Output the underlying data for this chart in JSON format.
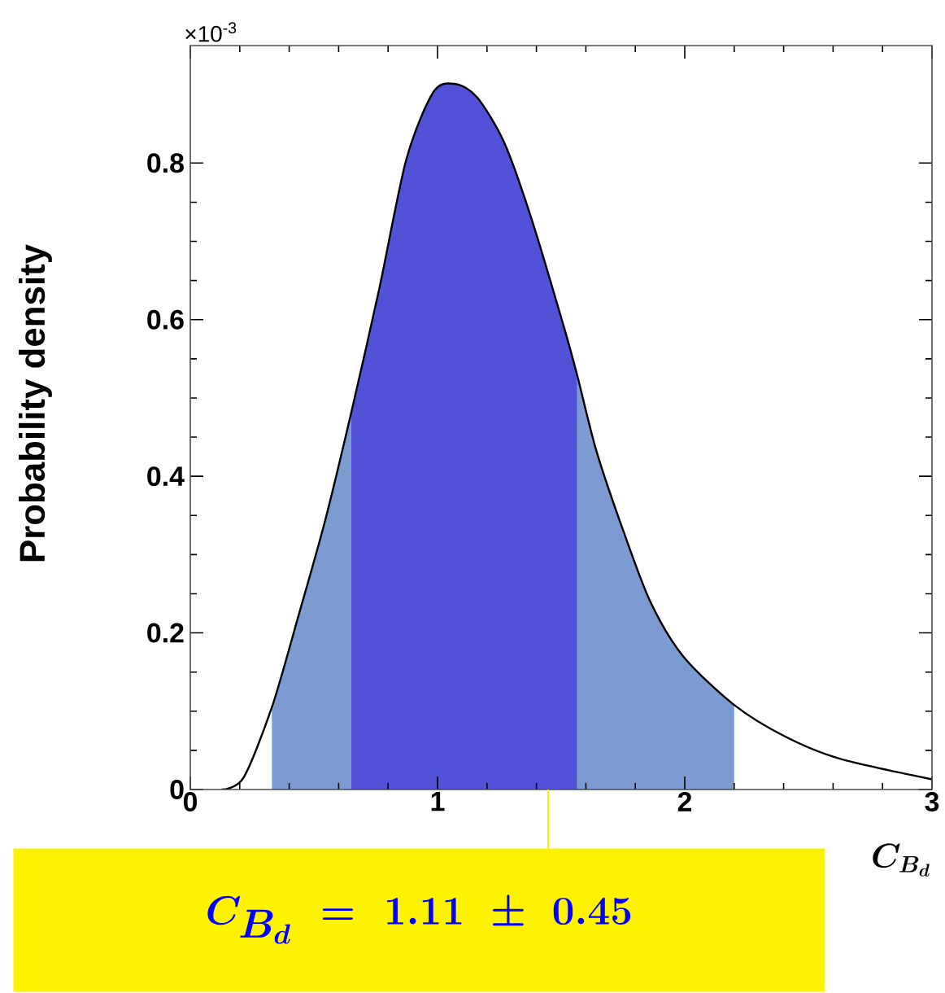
{
  "chart_data": {
    "type": "area",
    "xlabel": "C_{B_d}",
    "ylabel": "Probability density",
    "xlim": [
      0,
      3
    ],
    "xticks": [
      0,
      1,
      2,
      3
    ],
    "ylim": [
      0,
      0.95
    ],
    "yticks": [
      0,
      0.2,
      0.4,
      0.6,
      0.8
    ],
    "series": [
      {
        "color": "#7b9bd1",
        "x": [
          0.33,
          0.435,
          0.545,
          0.65
        ],
        "values": [
          0.105,
          0.219,
          0.343,
          0.48
        ]
      },
      {
        "color": "#7b9bd1",
        "x": [
          1.565,
          1.643,
          1.753,
          1.862,
          1.994,
          2.2
        ],
        "values": [
          0.529,
          0.432,
          0.329,
          0.239,
          0.17,
          0.108
        ]
      },
      {
        "color": "#5252d8",
        "x": [
          0.65,
          0.764,
          0.874,
          0.984,
          1.072,
          1.16,
          1.27,
          1.38,
          1.511,
          1.565
        ],
        "values": [
          0.48,
          0.639,
          0.805,
          0.891,
          0.901,
          0.884,
          0.826,
          0.729,
          0.591,
          0.529
        ]
      },
      {
        "type": "line",
        "color": "#000000",
        "x": [
          0.127,
          0.215,
          0.33,
          0.435,
          0.545,
          0.65,
          0.764,
          0.874,
          0.984,
          1.072,
          1.16,
          1.27,
          1.38,
          1.511,
          1.565,
          1.643,
          1.753,
          1.862,
          1.994,
          2.2,
          2.41,
          2.63,
          3.0
        ],
        "values": [
          0,
          0.015,
          0.105,
          0.219,
          0.343,
          0.48,
          0.639,
          0.805,
          0.891,
          0.901,
          0.884,
          0.826,
          0.729,
          0.591,
          0.529,
          0.432,
          0.329,
          0.239,
          0.17,
          0.108,
          0.067,
          0.039,
          0.013
        ]
      }
    ],
    "annotations": [
      "×10$^{-3}$",
      "C_{B_d}\\ =\\ 1.11\\ \\pm\\ 0.45"
    ]
  }
}
